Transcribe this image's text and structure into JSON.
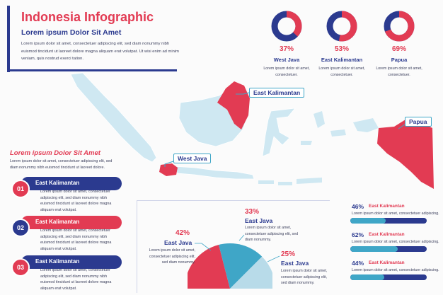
{
  "header": {
    "title": "Indonesia Infographic",
    "subtitle": "Lorem ipsum Dolor Sit Amet",
    "body": "Lorem ipsum dolor sit amet, consectetuer adipiscing elit, sed diam nonummy nibh euismod tincidunt ut laoreet dolore magna aliquam erat volutpat. Ut wisi enim ad minim veniam, quis nostrud exerci tation."
  },
  "donuts": [
    {
      "percent": "37%",
      "value": 37,
      "name": "West Java",
      "desc": "Lorem ipsum dolor sit amet, consectetuer."
    },
    {
      "percent": "53%",
      "value": 53,
      "name": "East Kalimantan",
      "desc": "Lorem ipsum dolor sit amet, consectetuer."
    },
    {
      "percent": "69%",
      "value": 69,
      "name": "Papua",
      "desc": "Lorem ipsum dolor sit amet, consectetuer."
    }
  ],
  "map_labels": {
    "east_kalimantan": "East Kalimantan",
    "west_java": "West Java",
    "papua": "Papua"
  },
  "left_section": {
    "title": "Lorem ipsum Dolor Sit Amet",
    "body": "Lorem ipsum dolor sit amet, consectetuer adipiscing elit, sed diam nonummy nibh euismod tincidunt ut laoreet dolore."
  },
  "steps": [
    {
      "number": "01",
      "title": "East Kalimantan",
      "desc": "Lorem ipsum dolor sit amet, consectetuer adipiscing elit, sed diam nonummy nibh euismod tincidunt ut laoreet dolore magna aliquam erat volutpat."
    },
    {
      "number": "02",
      "title": "East Kalimantan",
      "desc": "Lorem ipsum dolor sit amet, consectetuer adipiscing elit, sed diam nonummy nibh euismod tincidunt ut laoreet dolore magna aliquam erat volutpat."
    },
    {
      "number": "03",
      "title": "East Kalimantan",
      "desc": "Lorem ipsum dolor sit amet, consectetuer adipiscing elit, sed diam nonummy nibh euismod tincidunt ut laoreet dolore magna aliquam erat volutpat."
    }
  ],
  "pie": {
    "slices": [
      {
        "percent": "42%",
        "value": 42,
        "name": "East Java",
        "desc": "Lorem ipsum dolor sit amet, consectetuer adipiscing elit, sed diam nonummy.",
        "color": "#e23b53"
      },
      {
        "percent": "33%",
        "value": 33,
        "name": "East Java",
        "desc": "Lorem ipsum dolor sit amet, consectetuer adipiscing elit, sed diam nonummy.",
        "color": "#3fa6c7"
      },
      {
        "percent": "25%",
        "value": 25,
        "name": "East Java",
        "desc": "Lorem ipsum dolor sit amet, consectetuer adipiscing elit, sed diam nonummy.",
        "color": "#b8dbe9"
      }
    ]
  },
  "bars": [
    {
      "percent": "46%",
      "value": 46,
      "name": "East Kalimantan",
      "desc": "Lorem ipsum dolor sit amet, consectetuer adipiscing."
    },
    {
      "percent": "62%",
      "value": 62,
      "name": "East Kalimantan",
      "desc": "Lorem ipsum dolor sit amet, consectetuer adipiscing."
    },
    {
      "percent": "44%",
      "value": 44,
      "name": "East Kalimantan",
      "desc": "Lorem ipsum dolor sit amet, consectetuer adipiscing."
    }
  ],
  "colors": {
    "red": "#e23b53",
    "navy": "#2b3a8f",
    "teal": "#3fa6c7",
    "light_blue": "#cfe8f2"
  }
}
